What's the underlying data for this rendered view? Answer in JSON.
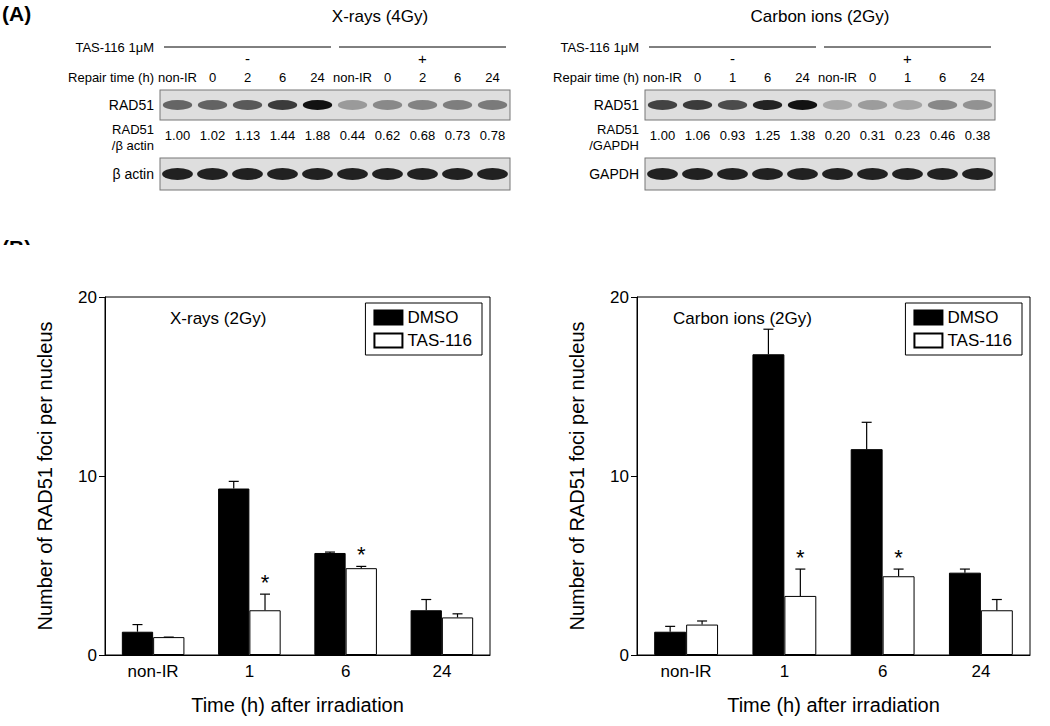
{
  "panel_labels": [
    "(A)",
    "(B)"
  ],
  "blots": [
    {
      "title": "X-rays (4Gy)",
      "treatment": "TAS-116 1μM",
      "groups": [
        "-",
        "+"
      ],
      "time_label": "Repair time (h)",
      "lanes": [
        "non-IR",
        "0",
        "2",
        "6",
        "24",
        "non-IR",
        "0",
        "2",
        "6",
        "24"
      ],
      "target": "RAD51",
      "ratio_label": [
        "RAD51",
        "/β actin"
      ],
      "ratios": [
        "1.00",
        "1.02",
        "1.13",
        "1.44",
        "1.88",
        "0.44",
        "0.62",
        "0.68",
        "0.73",
        "0.78"
      ],
      "control": "β actin"
    },
    {
      "title": "Carbon ions (2Gy)",
      "treatment": "TAS-116 1μM",
      "groups": [
        "-",
        "+"
      ],
      "time_label": "Repair time (h)",
      "lanes": [
        "non-IR",
        "0",
        "1",
        "6",
        "24",
        "non-IR",
        "0",
        "1",
        "6",
        "24"
      ],
      "target": "RAD51",
      "ratio_label": [
        "RAD51",
        "/GAPDH"
      ],
      "ratios": [
        "1.00",
        "1.06",
        "0.93",
        "1.25",
        "1.38",
        "0.20",
        "0.31",
        "0.23",
        "0.46",
        "0.38"
      ],
      "control": "GAPDH"
    }
  ],
  "chart_data": [
    {
      "type": "bar",
      "title": "X-rays (2Gy)",
      "x_label": "Time (h) after irradiation",
      "y_label": "Number of RAD51 foci per nucleus",
      "categories": [
        "non-IR",
        "1",
        "6",
        "24"
      ],
      "series": [
        {
          "name": "DMSO",
          "color": "#000000",
          "values": [
            1.3,
            9.3,
            5.7,
            2.5
          ],
          "errors": [
            0.4,
            0.4,
            0.05,
            0.6
          ]
        },
        {
          "name": "TAS-116",
          "color": "#ffffff",
          "values": [
            1.0,
            2.5,
            4.85,
            2.1
          ],
          "errors": [
            0.0,
            0.9,
            0.1,
            0.2
          ],
          "annotations": [
            null,
            "*",
            "*",
            null
          ]
        }
      ],
      "ylim": [
        0,
        20
      ],
      "yticks": [
        0,
        10,
        20
      ],
      "grid": false,
      "legend": "upper right"
    },
    {
      "type": "bar",
      "title": "Carbon ions (2Gy)",
      "x_label": "Time (h) after irradiation",
      "y_label": "Number of RAD51 foci per nucleus",
      "categories": [
        "non-IR",
        "1",
        "6",
        "24"
      ],
      "series": [
        {
          "name": "DMSO",
          "color": "#000000",
          "values": [
            1.3,
            16.8,
            11.5,
            4.6
          ],
          "errors": [
            0.3,
            1.4,
            1.5,
            0.2
          ]
        },
        {
          "name": "TAS-116",
          "color": "#ffffff",
          "values": [
            1.7,
            3.3,
            4.4,
            2.5
          ],
          "errors": [
            0.2,
            1.5,
            0.4,
            0.6
          ],
          "annotations": [
            null,
            "*",
            "*",
            null
          ]
        }
      ],
      "ylim": [
        0,
        20
      ],
      "yticks": [
        0,
        10,
        20
      ],
      "grid": false,
      "legend": "upper right"
    }
  ]
}
